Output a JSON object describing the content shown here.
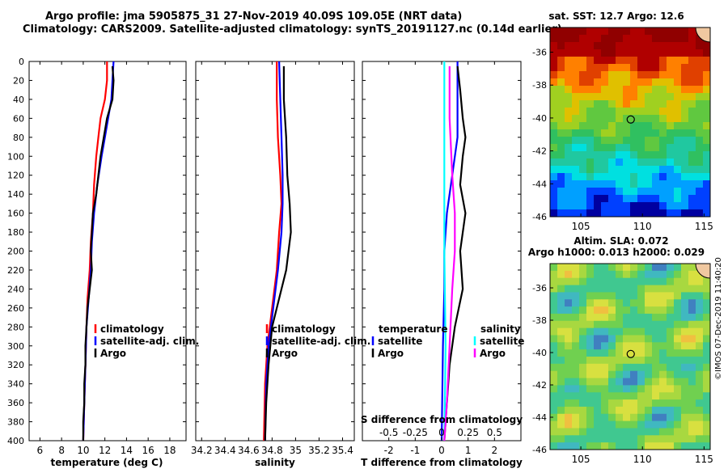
{
  "header": {
    "line1": "Argo profile: jma 5905875_31 27-Nov-2019 40.09S 109.05E (NRT data)",
    "line2": "Climatology: CARS2009. Satellite-adjusted climatology: synTS_20191127.nc (0.14d earlier)"
  },
  "footer": {
    "stamp": "©IMOS 07-Dec-2019 11:40:20"
  },
  "colors": {
    "climatology": "#ff0000",
    "satellite_adj": "#0000ff",
    "argo": "#000000",
    "temp_satellite": "#0000ff",
    "sal_satellite": "#00ffff",
    "sal_argo": "#ff00ff"
  },
  "chart_data": [
    {
      "id": "temperature",
      "type": "line",
      "xlabel": "temperature (deg C)",
      "ylabel": "depth",
      "xlim": [
        5,
        19.5
      ],
      "ylim": [
        400,
        0
      ],
      "xticks": [
        6,
        8,
        10,
        12,
        14,
        16,
        18
      ],
      "yticks": [
        0,
        20,
        40,
        60,
        80,
        100,
        120,
        140,
        160,
        180,
        200,
        220,
        240,
        260,
        280,
        300,
        320,
        340,
        360,
        380,
        400
      ],
      "legend": [
        "climatology",
        "satellite-adj. clim.",
        "Argo"
      ],
      "series": [
        {
          "name": "climatology",
          "color": "#ff0000",
          "points": [
            [
              12.2,
              0
            ],
            [
              12.2,
              20
            ],
            [
              12.0,
              40
            ],
            [
              11.6,
              60
            ],
            [
              11.4,
              80
            ],
            [
              11.2,
              100
            ],
            [
              11.0,
              130
            ],
            [
              10.9,
              160
            ],
            [
              10.7,
              190
            ],
            [
              10.6,
              220
            ],
            [
              10.4,
              250
            ],
            [
              10.3,
              280
            ],
            [
              10.2,
              320
            ],
            [
              10.1,
              360
            ],
            [
              10.0,
              400
            ]
          ]
        },
        {
          "name": "satellite-adj. clim.",
          "color": "#0000ff",
          "points": [
            [
              12.8,
              0
            ],
            [
              12.7,
              20
            ],
            [
              12.6,
              40
            ],
            [
              12.3,
              60
            ],
            [
              12.0,
              80
            ],
            [
              11.7,
              100
            ],
            [
              11.3,
              130
            ],
            [
              11.0,
              160
            ],
            [
              10.8,
              190
            ],
            [
              10.7,
              220
            ],
            [
              10.5,
              250
            ],
            [
              10.3,
              280
            ],
            [
              10.2,
              320
            ],
            [
              10.1,
              360
            ],
            [
              10.0,
              400
            ]
          ]
        },
        {
          "name": "Argo",
          "color": "#000000",
          "points": [
            [
              12.7,
              5
            ],
            [
              12.8,
              20
            ],
            [
              12.7,
              40
            ],
            [
              12.2,
              60
            ],
            [
              11.9,
              80
            ],
            [
              11.6,
              100
            ],
            [
              11.4,
              120
            ],
            [
              11.2,
              140
            ],
            [
              10.9,
              160
            ],
            [
              10.8,
              180
            ],
            [
              10.7,
              200
            ],
            [
              10.8,
              220
            ],
            [
              10.6,
              240
            ],
            [
              10.4,
              260
            ],
            [
              10.3,
              280
            ],
            [
              10.2,
              300
            ],
            [
              10.2,
              320
            ],
            [
              10.1,
              340
            ],
            [
              10.1,
              360
            ],
            [
              10.0,
              380
            ],
            [
              10.0,
              400
            ]
          ]
        }
      ]
    },
    {
      "id": "salinity",
      "type": "line",
      "xlabel": "salinity",
      "xlim": [
        34.15,
        35.5
      ],
      "ylim": [
        400,
        0
      ],
      "xticks": [
        34.2,
        34.4,
        34.6,
        34.8,
        35,
        35.2,
        35.4
      ],
      "xticklabels": [
        "34.2",
        "34.4",
        "34.6",
        "34.8",
        "35",
        "35.2",
        "35.4"
      ],
      "legend": [
        "climatology",
        "satellite-adj. clim.",
        "Argo"
      ],
      "series": [
        {
          "name": "climatology",
          "color": "#ff0000",
          "points": [
            [
              34.84,
              0
            ],
            [
              34.84,
              40
            ],
            [
              34.85,
              80
            ],
            [
              34.87,
              120
            ],
            [
              34.88,
              150
            ],
            [
              34.86,
              180
            ],
            [
              34.84,
              220
            ],
            [
              34.8,
              260
            ],
            [
              34.76,
              300
            ],
            [
              34.74,
              340
            ],
            [
              34.73,
              400
            ]
          ]
        },
        {
          "name": "satellite-adj. clim.",
          "color": "#0000ff",
          "points": [
            [
              34.86,
              0
            ],
            [
              34.87,
              40
            ],
            [
              34.88,
              80
            ],
            [
              34.89,
              120
            ],
            [
              34.89,
              150
            ],
            [
              34.88,
              180
            ],
            [
              34.85,
              220
            ],
            [
              34.81,
              260
            ],
            [
              34.77,
              300
            ],
            [
              34.75,
              340
            ],
            [
              34.74,
              400
            ]
          ]
        },
        {
          "name": "Argo",
          "color": "#000000",
          "points": [
            [
              34.9,
              5
            ],
            [
              34.9,
              40
            ],
            [
              34.92,
              80
            ],
            [
              34.93,
              120
            ],
            [
              34.95,
              150
            ],
            [
              34.96,
              180
            ],
            [
              34.92,
              220
            ],
            [
              34.86,
              250
            ],
            [
              34.8,
              280
            ],
            [
              34.77,
              320
            ],
            [
              34.75,
              360
            ],
            [
              34.74,
              400
            ]
          ]
        }
      ]
    },
    {
      "id": "difference",
      "type": "line",
      "xlabel": "T difference from climatology",
      "xlabel2": "S difference from climatology",
      "xlim": [
        -3,
        3
      ],
      "ylim": [
        400,
        0
      ],
      "xticks": [
        -2,
        -1,
        0,
        1,
        2
      ],
      "xticks2": [
        -0.5,
        -0.25,
        0,
        0.25,
        0.5
      ],
      "legend_temperature_title": "temperature",
      "legend_salinity_title": "salinity",
      "legend_temperature": [
        "satellite",
        "Argo"
      ],
      "legend_salinity": [
        "satellite",
        "Argo"
      ],
      "series": [
        {
          "name": "temperature satellite",
          "color": "#0000ff",
          "points": [
            [
              0.6,
              0
            ],
            [
              0.6,
              40
            ],
            [
              0.6,
              80
            ],
            [
              0.4,
              120
            ],
            [
              0.2,
              160
            ],
            [
              0.1,
              200
            ],
            [
              0.1,
              240
            ],
            [
              0.05,
              300
            ],
            [
              0.0,
              400
            ]
          ]
        },
        {
          "name": "temperature Argo",
          "color": "#000000",
          "points": [
            [
              0.6,
              5
            ],
            [
              0.7,
              30
            ],
            [
              0.8,
              60
            ],
            [
              0.9,
              80
            ],
            [
              0.8,
              100
            ],
            [
              0.7,
              130
            ],
            [
              0.9,
              160
            ],
            [
              0.7,
              200
            ],
            [
              0.8,
              240
            ],
            [
              0.5,
              280
            ],
            [
              0.3,
              320
            ],
            [
              0.2,
              360
            ],
            [
              0.1,
              400
            ]
          ]
        },
        {
          "name": "salinity satellite",
          "color": "#00ffff",
          "points": [
            [
              0.1,
              0
            ],
            [
              0.1,
              100
            ],
            [
              0.1,
              200
            ],
            [
              0.15,
              300
            ],
            [
              0.1,
              400
            ]
          ]
        },
        {
          "name": "salinity Argo",
          "color": "#ff00ff",
          "points": [
            [
              0.3,
              5
            ],
            [
              0.3,
              60
            ],
            [
              0.4,
              120
            ],
            [
              0.5,
              160
            ],
            [
              0.5,
              200
            ],
            [
              0.4,
              240
            ],
            [
              0.3,
              300
            ],
            [
              0.2,
              360
            ],
            [
              0.1,
              400
            ]
          ]
        }
      ]
    },
    {
      "id": "sst_map",
      "type": "heatmap",
      "title": "sat. SST: 12.7 Argo: 12.6",
      "xlim": [
        102.5,
        115.5
      ],
      "ylim": [
        -46,
        -34.5
      ],
      "xticks": [
        105,
        110,
        115
      ],
      "yticks": [
        -36,
        -38,
        -40,
        -42,
        -44,
        -46
      ],
      "marker": {
        "lon": 109.05,
        "lat": -40.09
      }
    },
    {
      "id": "sla_map",
      "type": "heatmap",
      "title": "Altim. SLA: 0.072",
      "subtitle": "Argo h1000: 0.013 h2000: 0.029",
      "xlim": [
        102.5,
        115.5
      ],
      "ylim": [
        -46,
        -34.5
      ],
      "xticks": [
        105,
        110,
        115
      ],
      "yticks": [
        -36,
        -38,
        -40,
        -42,
        -44,
        -46
      ],
      "marker": {
        "lon": 109.05,
        "lat": -40.09
      }
    }
  ]
}
